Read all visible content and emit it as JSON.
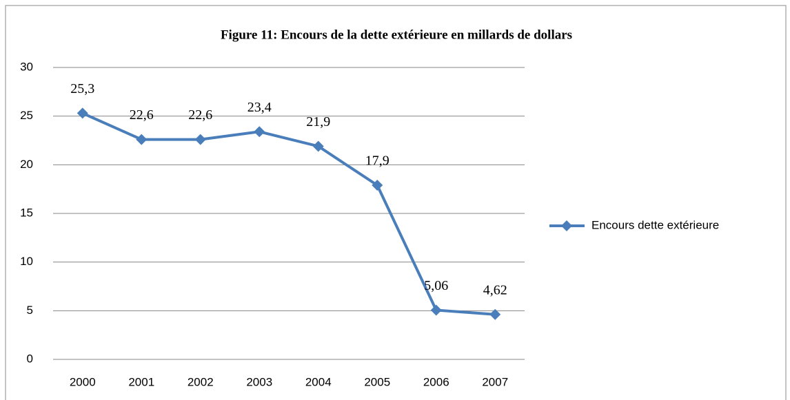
{
  "chart_data": {
    "type": "line",
    "title": "Figure 11: Encours  de la dette extérieure en millards de dollars",
    "categories": [
      "2000",
      "2001",
      "2002",
      "2003",
      "2004",
      "2005",
      "2006",
      "2007"
    ],
    "series": [
      {
        "name": "Encours dette extérieure",
        "color": "#4a7ebb",
        "values": [
          25.3,
          22.6,
          22.6,
          23.4,
          21.9,
          17.9,
          5.06,
          4.62
        ],
        "value_labels": [
          "25,3",
          "22,6",
          "22,6",
          "23,4",
          "21,9",
          "17,9",
          "5,06",
          "4,62"
        ]
      }
    ],
    "ylim": [
      0,
      30
    ],
    "yticks": [
      0,
      5,
      10,
      15,
      20,
      25,
      30
    ],
    "grid": true,
    "legend": "right"
  }
}
